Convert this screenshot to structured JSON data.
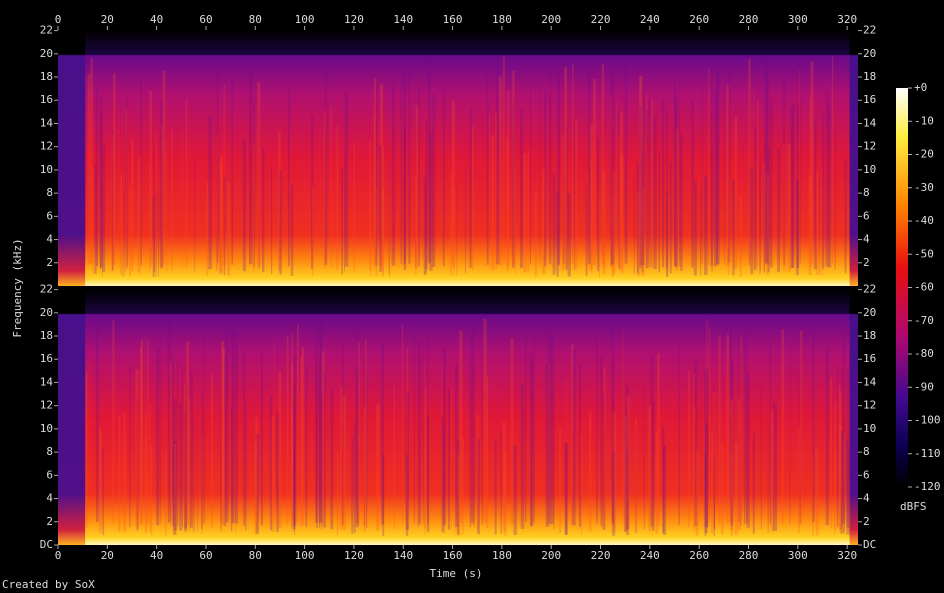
{
  "chart_data": {
    "type": "spectrogram",
    "xlabel": "Time (s)",
    "ylabel": "Frequency (kHz)",
    "credit": "Created by SoX",
    "xlim": [
      0,
      324.4
    ],
    "xticks": [
      0,
      20,
      40,
      60,
      80,
      100,
      120,
      140,
      160,
      180,
      200,
      220,
      240,
      260,
      280,
      300,
      320
    ],
    "channels": [
      {
        "ylim": [
          0,
          22.05
        ],
        "yticks": [
          2,
          4,
          6,
          8,
          10,
          12,
          14,
          16,
          18,
          20,
          22
        ]
      },
      {
        "ylim": [
          0,
          22.05
        ],
        "yticks": [
          {
            "value": 0,
            "label": "DC"
          },
          2,
          4,
          6,
          8,
          10,
          12,
          14,
          16,
          18,
          20,
          22
        ]
      }
    ],
    "colorbar": {
      "label": "dBFS",
      "lim": [
        -120,
        0
      ],
      "ticks": [
        {
          "value": 0,
          "label": "+0"
        },
        -10,
        -20,
        -30,
        -40,
        -50,
        -60,
        -70,
        -80,
        -90,
        -100,
        -110,
        -120
      ]
    }
  }
}
